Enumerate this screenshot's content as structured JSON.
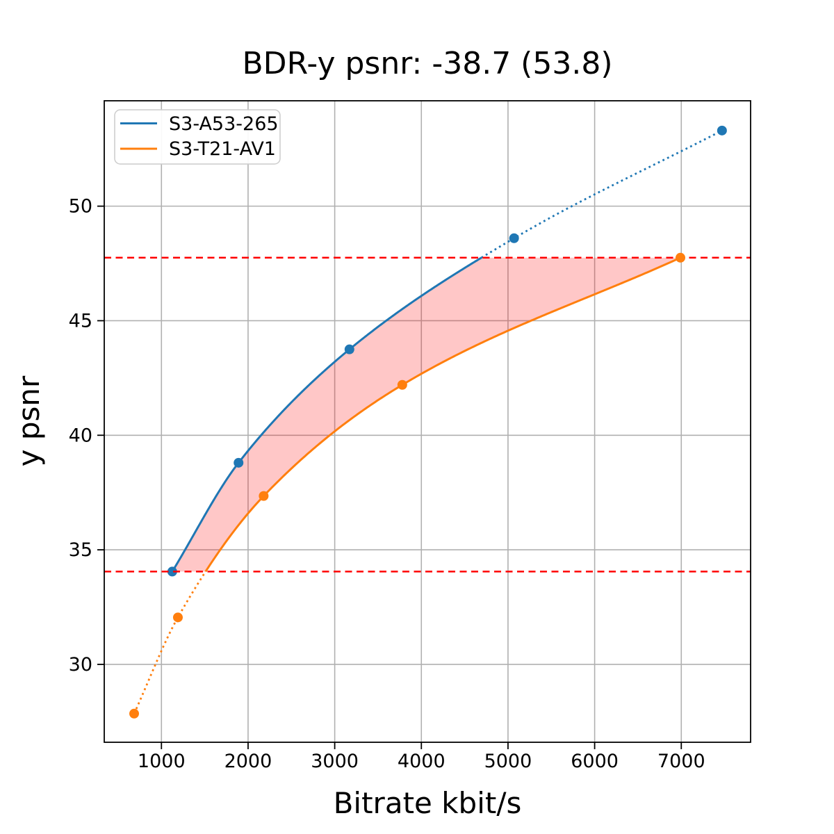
{
  "figure_title": "BDR-y psnr: -38.7 (53.8)",
  "chart_data": {
    "type": "line",
    "title": "BDR-y psnr: -38.7 (53.8)",
    "xlabel": "Bitrate kbit/s",
    "ylabel": "y psnr",
    "xlim": [
      340,
      7800
    ],
    "ylim": [
      26.6,
      54.6
    ],
    "x_ticks": [
      1000,
      2000,
      3000,
      4000,
      5000,
      6000,
      7000
    ],
    "y_ticks": [
      30,
      35,
      40,
      45,
      50
    ],
    "grid": true,
    "grid_color": "#b0b0b0",
    "background": "#ffffff",
    "legend_position": "upper left",
    "series": [
      {
        "name": "S3-A53-265",
        "color": "#1f77b4",
        "marker": "circle",
        "x": [
          1125,
          1890,
          3170,
          5070,
          7470
        ],
        "y": [
          34.05,
          38.8,
          43.75,
          48.6,
          53.3
        ]
      },
      {
        "name": "S3-T21-AV1",
        "color": "#ff7f0e",
        "marker": "circle",
        "x": [
          685,
          1190,
          2180,
          3780,
          6990
        ],
        "y": [
          27.85,
          32.05,
          37.35,
          42.2,
          47.75
        ]
      }
    ],
    "bd_overlap_lines": {
      "values": [
        34.05,
        47.75
      ],
      "color": "#ff0000",
      "style": "dashed"
    },
    "shaded_region": {
      "between_series": [
        "S3-A53-265",
        "S3-T21-AV1"
      ],
      "y_range": [
        34.05,
        47.75
      ],
      "color": "#ff0000",
      "opacity": 0.22
    },
    "line_style_note": "curves solid inside overlap y-range, dotted outside"
  }
}
